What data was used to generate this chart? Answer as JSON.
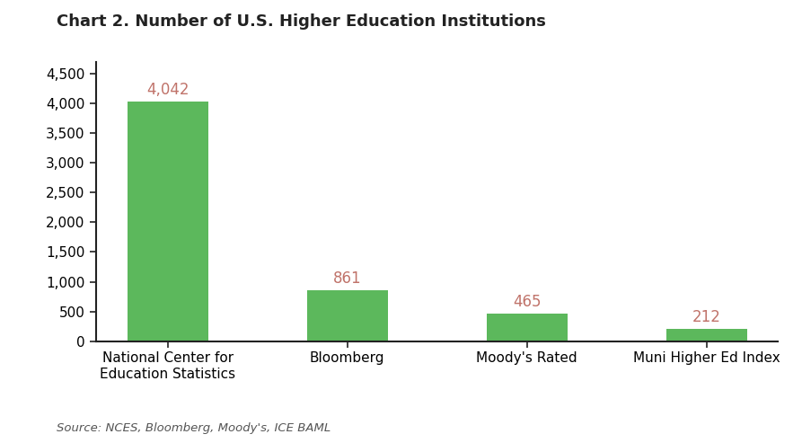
{
  "title": "Chart 2. Number of U.S. Higher Education Institutions",
  "categories": [
    "National Center for\nEducation Statistics",
    "Bloomberg",
    "Moody's Rated",
    "Muni Higher Ed Index"
  ],
  "values": [
    4042,
    861,
    465,
    212
  ],
  "value_labels": [
    "4,042",
    "861",
    "465",
    "212"
  ],
  "bar_color": "#5cb85c",
  "yticks": [
    0,
    500,
    1000,
    1500,
    2000,
    2500,
    3000,
    3500,
    4000,
    4500
  ],
  "ylim": [
    0,
    4700
  ],
  "source_text": "Source: NCES, Bloomberg, Moody's, ICE BAML",
  "title_fontsize": 13,
  "label_fontsize": 12,
  "tick_fontsize": 11,
  "source_fontsize": 9.5,
  "value_label_color": "#c0736a",
  "background_color": "#ffffff"
}
